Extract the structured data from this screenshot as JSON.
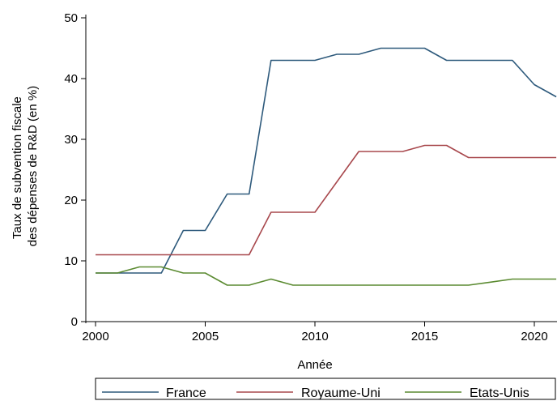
{
  "chart_data": {
    "type": "line",
    "title": "",
    "xlabel": "Année",
    "ylabel_lines": [
      "Taux de subvention fiscale",
      "des dépenses de R&D (en %)"
    ],
    "xlim": [
      2000,
      2021
    ],
    "ylim": [
      0,
      50
    ],
    "x_ticks": [
      2000,
      2005,
      2010,
      2015,
      2020
    ],
    "y_ticks": [
      0,
      10,
      20,
      30,
      40,
      50
    ],
    "grid": false,
    "legend_position": "bottom",
    "x": [
      2000,
      2001,
      2002,
      2003,
      2004,
      2005,
      2006,
      2007,
      2008,
      2009,
      2010,
      2011,
      2012,
      2013,
      2014,
      2015,
      2016,
      2017,
      2018,
      2019,
      2020,
      2021
    ],
    "series": [
      {
        "name": "France",
        "color": "#2e5a7c",
        "values": [
          8,
          8,
          8,
          8,
          15,
          15,
          21,
          21,
          43,
          43,
          43,
          44,
          44,
          45,
          45,
          45,
          43,
          43,
          43,
          43,
          39,
          37
        ]
      },
      {
        "name": "Royaume-Uni",
        "color": "#a8484d",
        "values": [
          11,
          11,
          11,
          11,
          11,
          11,
          11,
          11,
          18,
          18,
          18,
          23,
          28,
          28,
          28,
          29,
          29,
          27,
          27,
          27,
          27,
          27
        ]
      },
      {
        "name": "Etats-Unis",
        "color": "#5a8a30",
        "values": [
          8,
          8,
          9,
          9,
          8,
          8,
          6,
          6,
          7,
          6,
          6,
          6,
          6,
          6,
          6,
          6,
          6,
          6,
          6.5,
          7,
          7,
          7
        ]
      }
    ]
  }
}
